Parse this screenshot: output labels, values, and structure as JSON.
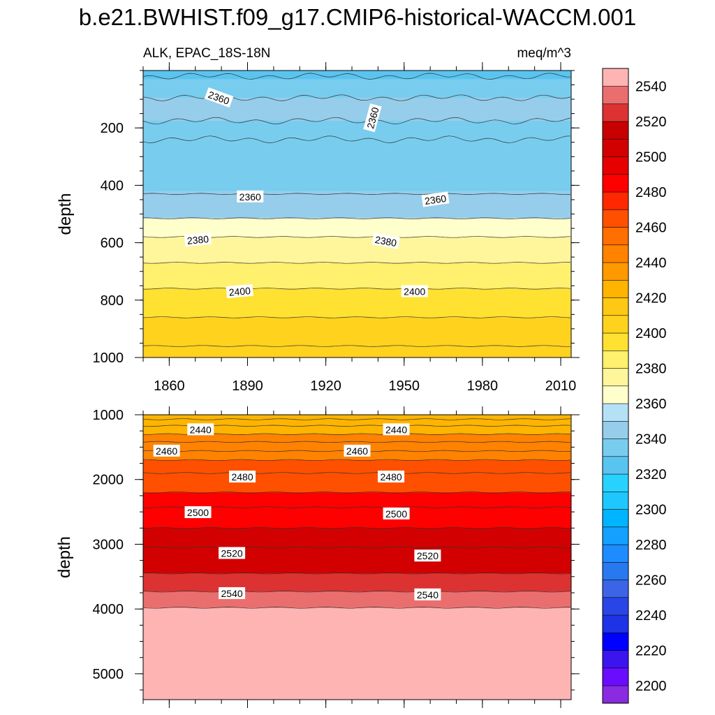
{
  "title": "b.e21.BWHIST.f09_g17.CMIP6-historical-WACCM.001",
  "subtitle_left": "ALK, EPAC_18S-18N",
  "subtitle_right": "meq/m^3",
  "chart_data": [
    {
      "type": "heatmap",
      "panel": "upper",
      "xlabel": "",
      "ylabel": "depth",
      "xlim": [
        1850,
        2014
      ],
      "ylim": [
        0,
        1000
      ],
      "y_reversed": true,
      "x_ticks": [
        1860,
        1890,
        1920,
        1950,
        1980,
        2010
      ],
      "x_tick_labels": [
        "1860",
        "1890",
        "1920",
        "1950",
        "1980",
        "2010"
      ],
      "y_ticks": [
        200,
        400,
        600,
        800,
        1000
      ],
      "y_tick_labels": [
        "200",
        "400",
        "600",
        "800",
        "1000"
      ],
      "bands": [
        {
          "top": 0,
          "bottom": 30,
          "value": 2330
        },
        {
          "top": 30,
          "bottom": 95,
          "value": 2345
        },
        {
          "top": 95,
          "bottom": 175,
          "value": 2355
        },
        {
          "top": 175,
          "bottom": 420,
          "value": 2345
        },
        {
          "top": 420,
          "bottom": 515,
          "value": 2355
        },
        {
          "top": 515,
          "bottom": 580,
          "value": 2375
        },
        {
          "top": 580,
          "bottom": 670,
          "value": 2385
        },
        {
          "top": 670,
          "bottom": 760,
          "value": 2395
        },
        {
          "top": 760,
          "bottom": 860,
          "value": 2405
        },
        {
          "top": 860,
          "bottom": 1000,
          "value": 2415
        }
      ],
      "contour_depths": [
        20,
        95,
        175,
        240,
        430,
        515,
        580,
        670,
        760,
        860,
        960
      ],
      "contour_labels": [
        {
          "text": "2360",
          "x": 1879,
          "y": 95,
          "angle": 20
        },
        {
          "text": "2360",
          "x": 1938,
          "y": 165,
          "angle": -75
        },
        {
          "text": "2360",
          "x": 1891,
          "y": 440,
          "angle": 0
        },
        {
          "text": "2360",
          "x": 1962,
          "y": 450,
          "angle": -8
        },
        {
          "text": "2380",
          "x": 1871,
          "y": 590,
          "angle": -5
        },
        {
          "text": "2380",
          "x": 1943,
          "y": 595,
          "angle": 10
        },
        {
          "text": "2400",
          "x": 1887,
          "y": 770,
          "angle": -5
        },
        {
          "text": "2400",
          "x": 1954,
          "y": 770,
          "angle": 0
        }
      ]
    },
    {
      "type": "heatmap",
      "panel": "lower",
      "xlabel": "",
      "ylabel": "depth",
      "xlim": [
        1850,
        2014
      ],
      "ylim": [
        1000,
        5400
      ],
      "y_reversed": true,
      "y_ticks": [
        1000,
        2000,
        3000,
        4000,
        5000
      ],
      "y_tick_labels": [
        "1000",
        "2000",
        "3000",
        "4000",
        "5000"
      ],
      "bands": [
        {
          "top": 1000,
          "bottom": 1300,
          "value": 2435
        },
        {
          "top": 1300,
          "bottom": 1700,
          "value": 2455
        },
        {
          "top": 1700,
          "bottom": 2200,
          "value": 2475
        },
        {
          "top": 2200,
          "bottom": 2750,
          "value": 2495
        },
        {
          "top": 2750,
          "bottom": 3450,
          "value": 2515
        },
        {
          "top": 3450,
          "bottom": 3730,
          "value": 2535
        },
        {
          "top": 3730,
          "bottom": 3980,
          "value": 2545
        },
        {
          "top": 3980,
          "bottom": 5400,
          "value": 2555
        }
      ],
      "contour_depths": [
        1070,
        1170,
        1300,
        1420,
        1560,
        1700,
        1900,
        2200,
        2430,
        2750,
        3050,
        3450,
        3730,
        3980
      ],
      "contour_labels": [
        {
          "text": "2440",
          "x": 1872,
          "y": 1230,
          "angle": 0
        },
        {
          "text": "2440",
          "x": 1947,
          "y": 1230,
          "angle": 0
        },
        {
          "text": "2460",
          "x": 1859,
          "y": 1560,
          "angle": 0
        },
        {
          "text": "2460",
          "x": 1932,
          "y": 1560,
          "angle": 0
        },
        {
          "text": "2480",
          "x": 1888,
          "y": 1960,
          "angle": 0
        },
        {
          "text": "2480",
          "x": 1945,
          "y": 1960,
          "angle": 0
        },
        {
          "text": "2500",
          "x": 1871,
          "y": 2510,
          "angle": 0
        },
        {
          "text": "2500",
          "x": 1947,
          "y": 2530,
          "angle": 0
        },
        {
          "text": "2520",
          "x": 1884,
          "y": 3140,
          "angle": 0
        },
        {
          "text": "2520",
          "x": 1959,
          "y": 3180,
          "angle": 0
        },
        {
          "text": "2540",
          "x": 1884,
          "y": 3760,
          "angle": 0
        },
        {
          "text": "2540",
          "x": 1959,
          "y": 3780,
          "angle": 0
        }
      ]
    }
  ],
  "colorbar": {
    "levels": [
      2200,
      2210,
      2220,
      2230,
      2240,
      2250,
      2260,
      2270,
      2280,
      2290,
      2300,
      2310,
      2320,
      2330,
      2340,
      2350,
      2360,
      2370,
      2380,
      2390,
      2400,
      2410,
      2420,
      2430,
      2440,
      2450,
      2460,
      2470,
      2480,
      2490,
      2500,
      2510,
      2520,
      2530,
      2540,
      2550
    ],
    "colors": [
      "#8a2be2",
      "#6a0dff",
      "#3c14f0",
      "#0000ff",
      "#1e32e6",
      "#2846e6",
      "#3c64e6",
      "#2878f0",
      "#1e8cff",
      "#14a0ff",
      "#00b4ff",
      "#1ec8ff",
      "#28d2ff",
      "#5ac4f0",
      "#78cdef",
      "#96cdeb",
      "#b4e1f5",
      "#ffffcc",
      "#fff59b",
      "#fff06e",
      "#ffe132",
      "#ffd21e",
      "#ffc814",
      "#ffb400",
      "#ff9900",
      "#ff8200",
      "#ff6e00",
      "#ff5000",
      "#ff2800",
      "#ff0000",
      "#e60000",
      "#d20000",
      "#c80000",
      "#dc3232",
      "#eb6e6e",
      "#ffb4b4"
    ],
    "label_values": [
      "2200",
      "2220",
      "2240",
      "2260",
      "2280",
      "2300",
      "2320",
      "2340",
      "2360",
      "2380",
      "2400",
      "2420",
      "2440",
      "2460",
      "2480",
      "2500",
      "2520",
      "2540"
    ]
  }
}
